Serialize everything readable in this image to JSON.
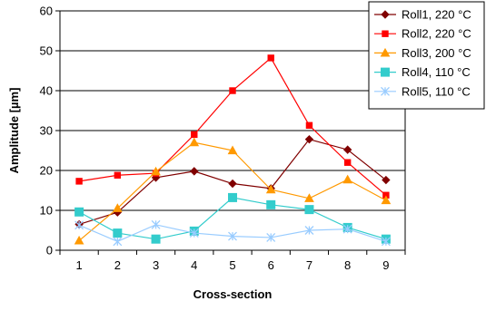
{
  "chart_data": {
    "type": "line",
    "title": "",
    "xlabel": "Cross-section",
    "ylabel": "Amplitude [µm]",
    "categories": [
      "1",
      "2",
      "3",
      "4",
      "5",
      "6",
      "7",
      "8",
      "9"
    ],
    "ylim": [
      0,
      60
    ],
    "yticks": [
      "0",
      "10",
      "20",
      "30",
      "40",
      "50",
      "60"
    ],
    "grid": "horizontal",
    "legend_position": "top-right",
    "series": [
      {
        "name": "Roll1, 220 °C",
        "color": "#800000",
        "marker": "diamond",
        "values": [
          6.5,
          9.5,
          18.2,
          19.8,
          16.7,
          15.5,
          27.8,
          25.2,
          17.6
        ]
      },
      {
        "name": "Roll2, 220 °C",
        "color": "#ff0000",
        "marker": "square",
        "values": [
          17.3,
          18.8,
          19.3,
          29.0,
          40.0,
          48.2,
          31.3,
          22.0,
          13.8
        ]
      },
      {
        "name": "Roll3, 200 °C",
        "color": "#ff9900",
        "marker": "triangle",
        "values": [
          2.4,
          10.5,
          19.7,
          27.0,
          25.0,
          15.2,
          13.0,
          17.7,
          12.5
        ]
      },
      {
        "name": "Roll4, 110 °C",
        "color": "#33cccc",
        "marker": "square-large",
        "values": [
          9.6,
          4.3,
          2.8,
          4.8,
          13.2,
          11.4,
          10.2,
          5.7,
          2.8
        ]
      },
      {
        "name": "Roll5, 110 °C",
        "color": "#99ccff",
        "marker": "asterisk",
        "values": [
          6.3,
          2.2,
          6.4,
          4.3,
          3.5,
          3.2,
          5.0,
          5.3,
          2.2
        ]
      }
    ]
  }
}
